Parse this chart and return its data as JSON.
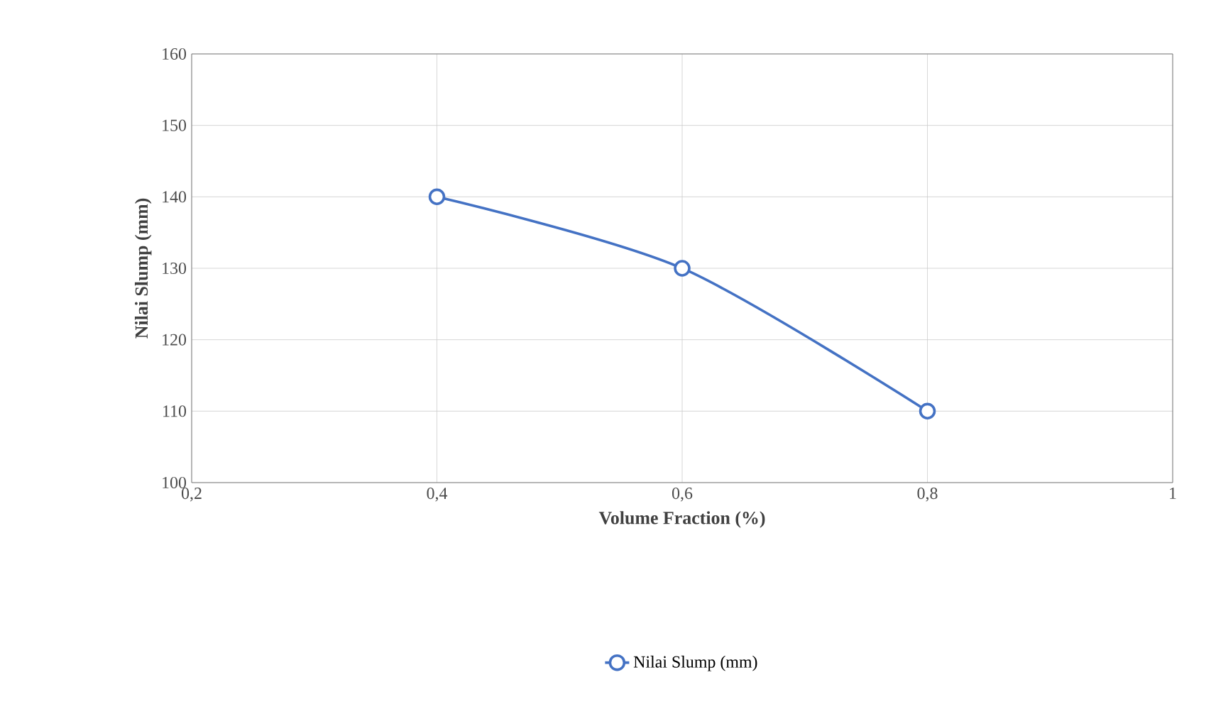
{
  "chart_data": {
    "type": "line",
    "xlabel": "Volume Fraction (%)",
    "ylabel": "Nilai Slump (mm)",
    "x": [
      0.4,
      0.6,
      0.8
    ],
    "series": [
      {
        "name": "Nilai Slump (mm)",
        "color": "#4472c4",
        "values": [
          140,
          130,
          110
        ]
      }
    ],
    "xlim": [
      0.2,
      1
    ],
    "xticks": [
      {
        "value": 0.2,
        "label": "0,2"
      },
      {
        "value": 0.4,
        "label": "0,4"
      },
      {
        "value": 0.6,
        "label": "0,6"
      },
      {
        "value": 0.8,
        "label": "0,8"
      },
      1
    ],
    "ylim": [
      100,
      160
    ],
    "yticks": [
      100,
      110,
      120,
      130,
      140,
      150,
      160
    ],
    "grid": true,
    "legend": "bottom",
    "marker": "circle",
    "line_style": "solid"
  }
}
